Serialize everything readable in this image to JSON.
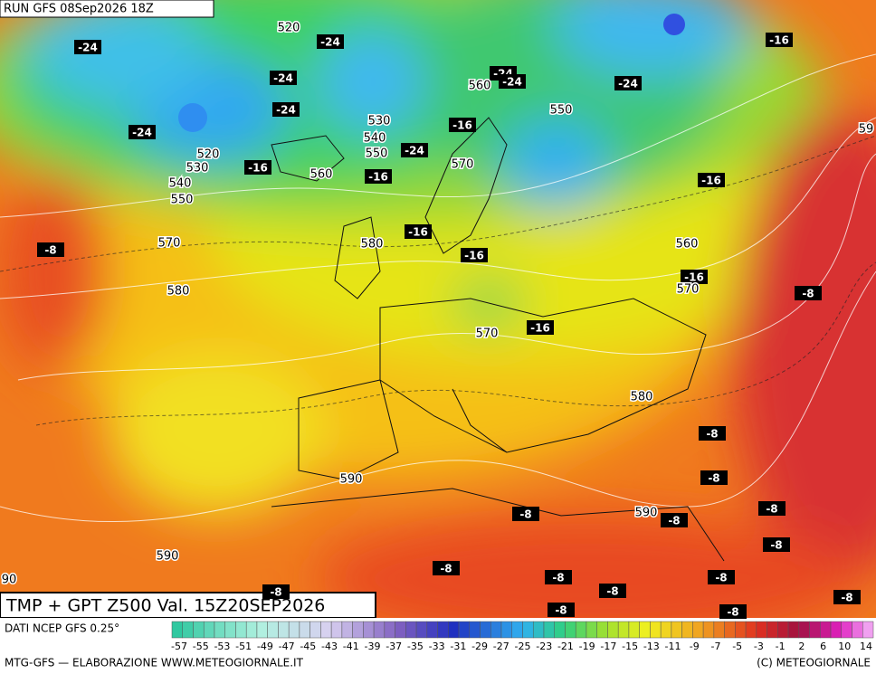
{
  "header": {
    "run": "RUN GFS 08Sep2026 18Z"
  },
  "map": {
    "temperature_labels": [
      -24,
      -24,
      -24,
      -24,
      -24,
      -16,
      -16,
      -24,
      -16,
      -24,
      -24,
      -24,
      -16,
      -16,
      -8,
      -16,
      -16,
      -16,
      -8,
      -16,
      -8,
      -8,
      -8,
      -8,
      -8,
      -8,
      -8,
      -8,
      -8,
      -8,
      -8,
      -8,
      -8,
      -8
    ],
    "height_labels": [
      520,
      560,
      530,
      540,
      550,
      520,
      530,
      540,
      550,
      560,
      570,
      550,
      570,
      580,
      560,
      580,
      570,
      570,
      580,
      590,
      590,
      590,
      59,
      90
    ]
  },
  "caption": {
    "title": "TMP + GPT Z500 Val. 15Z20SEP2026"
  },
  "legend": {
    "source": "DATI NCEP GFS 0.25°",
    "labels": [
      -57,
      -55,
      -53,
      -51,
      -49,
      -47,
      -45,
      -43,
      -41,
      -39,
      -37,
      -35,
      -33,
      -31,
      -29,
      -27,
      -25,
      -23,
      -21,
      -19,
      -17,
      -15,
      -13,
      -11,
      -9,
      -7,
      -5,
      -3,
      -1,
      2,
      6,
      10,
      14
    ]
  },
  "footer": {
    "left": "MTG-GFS — ELABORAZIONE WWW.METEOGIORNALE.IT",
    "right": "(C) METEOGIORNALE"
  }
}
